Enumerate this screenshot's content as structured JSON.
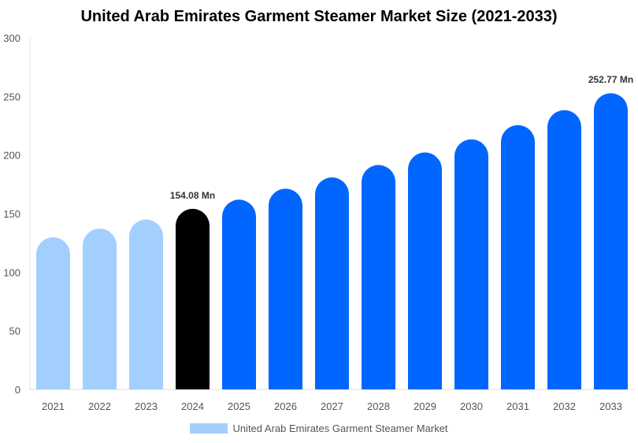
{
  "chart_data": {
    "type": "bar",
    "title": "United Arab Emirates Garment Steamer Market Size (2021-2033)",
    "categories": [
      "2021",
      "2022",
      "2023",
      "2024",
      "2025",
      "2026",
      "2027",
      "2028",
      "2029",
      "2030",
      "2031",
      "2032",
      "2033"
    ],
    "series": [
      {
        "name": "United Arab Emirates Garment Steamer Market",
        "values": [
          129.8,
          137.2,
          145.0,
          154.08,
          161.9,
          171.3,
          180.9,
          191.5,
          202.2,
          213.4,
          225.5,
          238.3,
          252.77
        ]
      }
    ],
    "data_labels": {
      "3": "154.08 Mn",
      "12": "252.77 Mn"
    },
    "ylim": [
      0,
      300
    ],
    "yticks": [
      0,
      50,
      100,
      150,
      200,
      250,
      300
    ],
    "grid": false,
    "legend_position": "bottom",
    "colors": {
      "historical": "#a3cfff",
      "current": "#000000",
      "forecast": "#0066ff"
    }
  }
}
